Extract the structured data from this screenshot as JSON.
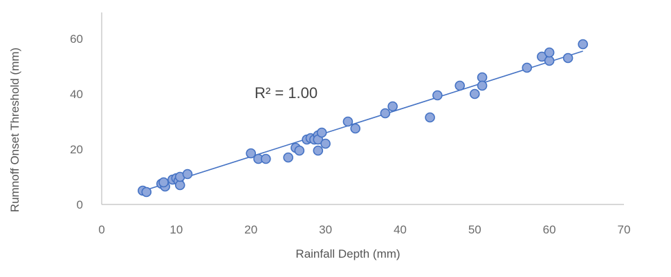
{
  "chart_data": {
    "type": "scatter",
    "xlabel": "Rainfall Depth (mm)",
    "ylabel": "Rumnoff Onset Threshold (mm)",
    "xlim": [
      0,
      70
    ],
    "ylim": [
      0,
      60
    ],
    "x_ticks": [
      0,
      10,
      20,
      30,
      40,
      50,
      60,
      70
    ],
    "y_ticks": [
      0,
      20,
      40,
      60
    ],
    "annotation": "R² = 1.00",
    "grid": false,
    "legend": "none",
    "colors": {
      "marker_fill": "#8fa7dc",
      "marker_stroke": "#4472c4",
      "trendline": "#4472c4",
      "axis": "#bfbfbf"
    },
    "trendline": {
      "type": "linear",
      "x": [
        6,
        64.5
      ],
      "y": [
        5.3,
        55.5
      ]
    },
    "series": [
      {
        "x": [
          5.5,
          6.0,
          8.0,
          8.5,
          8.3,
          9.5,
          10.0,
          10.3,
          10.5,
          10.5,
          11.5,
          20.0,
          21.0,
          22.0,
          25.0,
          26.0,
          26.5,
          27.5,
          28.0,
          28.5,
          29.0,
          29.0,
          29.0,
          29.5,
          30.0,
          33.0,
          34.0,
          38.0,
          39.0,
          44.0,
          45.0,
          48.0,
          50.0,
          51.0,
          51.0,
          57.0,
          59.0,
          60.0,
          60.0,
          62.5,
          64.5
        ],
        "y": [
          5.0,
          4.5,
          7.5,
          6.5,
          8.0,
          9.0,
          9.5,
          8.5,
          7.0,
          10.0,
          11.0,
          18.5,
          16.5,
          16.5,
          17.0,
          20.5,
          19.5,
          23.5,
          24.0,
          23.5,
          25.0,
          23.5,
          19.5,
          26.0,
          22.0,
          30.0,
          27.5,
          33.0,
          35.5,
          31.5,
          39.5,
          43.0,
          40.0,
          46.0,
          43.0,
          49.5,
          53.5,
          52.0,
          55.0,
          53.0,
          58.0
        ]
      }
    ]
  }
}
